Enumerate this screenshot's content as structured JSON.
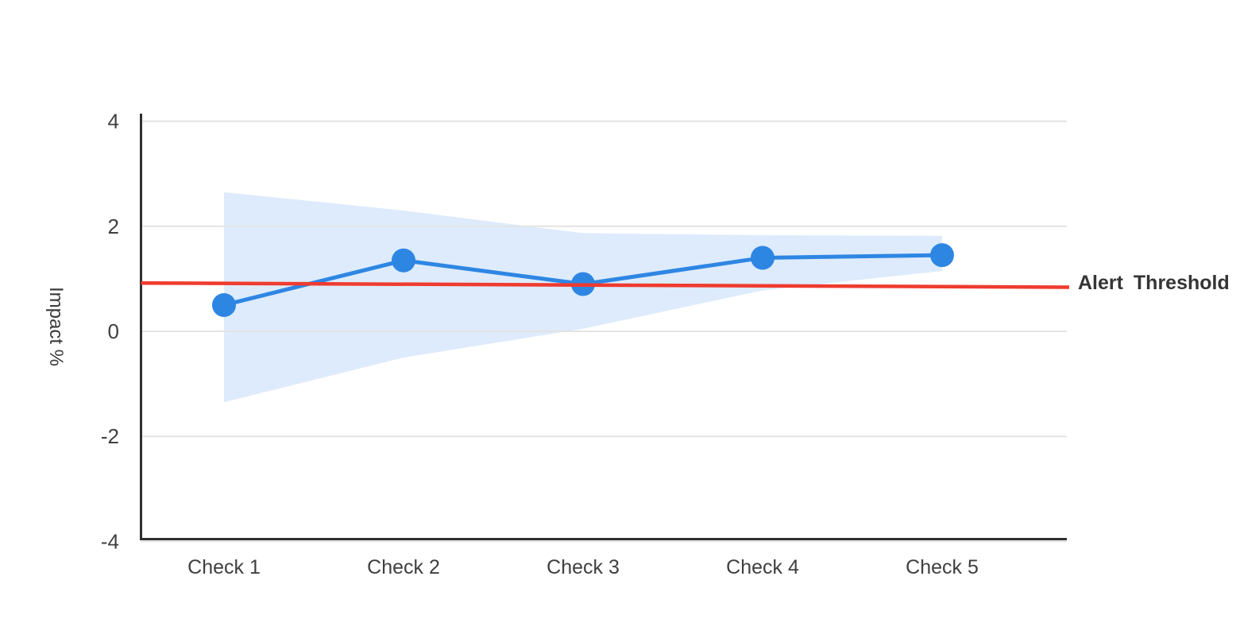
{
  "chart_data": {
    "type": "line",
    "title": "",
    "categories": [
      "Check 1",
      "Check 2",
      "Check 3",
      "Check 4",
      "Check 5"
    ],
    "series": [
      {
        "name": "Impact",
        "values": [
          0.5,
          1.35,
          0.9,
          1.4,
          1.45
        ],
        "color": "#2e86e3",
        "marker": "circle",
        "marker_radius": 15,
        "line_width": 5
      }
    ],
    "confidence_band": {
      "upper": [
        2.65,
        2.3,
        1.87,
        1.83,
        1.82
      ],
      "lower": [
        -1.35,
        -0.5,
        0.05,
        0.78,
        1.15
      ],
      "color": "#ddebfc"
    },
    "threshold": {
      "label": "Alert Threshold",
      "start_value": 0.92,
      "end_value": 0.84,
      "color": "#ef3b2f",
      "line_width": 4.5
    },
    "xlabel": "",
    "ylabel": "Impact %",
    "yticks": [
      4,
      2,
      0,
      -2,
      -4
    ],
    "ylim": [
      -4,
      4.15
    ],
    "grid": true,
    "grid_color": "#e3e3e3",
    "axis_color": "#2f2f2f",
    "legend_position": "right of threshold line end"
  },
  "colors": {
    "background": "#ffffff",
    "series_blue": "#2e86e3",
    "band_blue": "#ddebfc",
    "threshold_red": "#ef3b2f",
    "gridline": "#e3e3e3",
    "axis": "#2f2f2f",
    "tick_text": "#3f3f3f",
    "threshold_text": "#353535"
  }
}
